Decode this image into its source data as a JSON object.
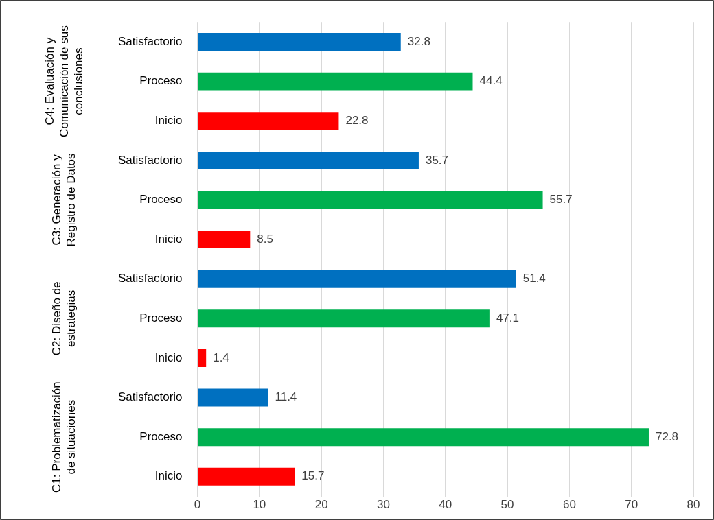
{
  "chart_data": {
    "type": "bar",
    "orientation": "horizontal",
    "categories": [
      "Satisfactorio",
      "Proceso",
      "Inicio",
      "Satisfactorio",
      "Proceso",
      "Inicio",
      "Satisfactorio",
      "Proceso",
      "Inicio",
      "Satisfactorio",
      "Proceso",
      "Inicio"
    ],
    "values": [
      32.8,
      44.4,
      22.8,
      35.7,
      55.7,
      8.5,
      51.4,
      47.1,
      1.4,
      11.4,
      72.8,
      15.7
    ],
    "colors": [
      "#0070c0",
      "#00b050",
      "#ff0000",
      "#0070c0",
      "#00b050",
      "#ff0000",
      "#0070c0",
      "#00b050",
      "#ff0000",
      "#0070c0",
      "#00b050",
      "#ff0000"
    ],
    "annotations": [
      "C4: Evaluación y Comunicación de sus conclusiones",
      "C3: Generación y Registro de Datos",
      "C2: Diseño de estrategias",
      "C1: Problematización de situaciones"
    ],
    "xlim": [
      0,
      80
    ],
    "xticks": [
      0,
      10,
      20,
      30,
      40,
      50,
      60,
      70,
      80
    ],
    "grid": "x",
    "data_labels": true,
    "legend": false
  }
}
